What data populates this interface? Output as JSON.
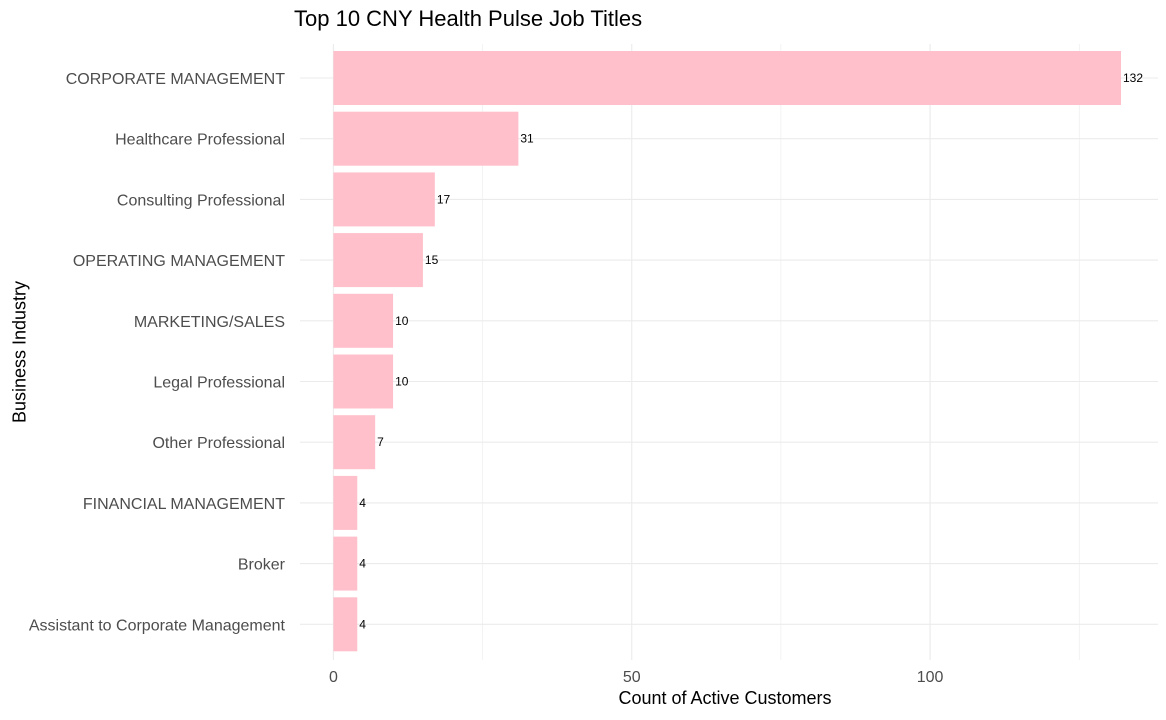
{
  "chart_data": {
    "type": "bar",
    "orientation": "horizontal",
    "title": "Top 10 CNY Health Pulse Job Titles",
    "xlabel": "Count of Active Customers",
    "ylabel": "Business Industry",
    "categories": [
      "CORPORATE MANAGEMENT",
      "Healthcare Professional",
      "Consulting Professional",
      "OPERATING MANAGEMENT",
      "MARKETING/SALES",
      "Legal Professional",
      "Other Professional",
      "FINANCIAL MANAGEMENT",
      "Broker",
      "Assistant to Corporate Management"
    ],
    "values": [
      132,
      31,
      17,
      15,
      10,
      10,
      7,
      4,
      4,
      4
    ],
    "data_labels": [
      "132",
      "31",
      "17",
      "15",
      "10",
      "10",
      "7",
      "4",
      "4",
      "4"
    ],
    "xlim": [
      -5.6,
      138.2
    ],
    "x_ticks": [
      0,
      50,
      100
    ],
    "x_tick_labels": [
      "0",
      "50",
      "100"
    ],
    "x_minor_ticks": [
      25,
      75,
      125
    ],
    "grid": true,
    "legend": "none",
    "colors": {
      "bar": "#ffc0cb",
      "grid": "#ebebeb",
      "tick_label": "#4d4d4d",
      "data_label": "#000000",
      "text": "#000000"
    }
  }
}
